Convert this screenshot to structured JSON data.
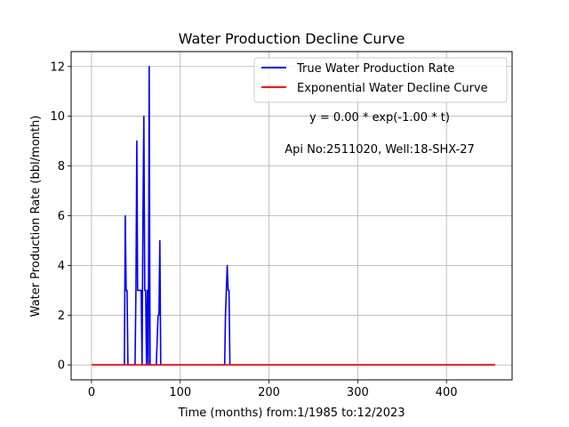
{
  "chart_data": {
    "type": "line",
    "title": "Water Production Decline Curve",
    "xlabel": "Time (months) from:1/1985 to:12/2023",
    "ylabel": "Water Production Rate (bbl/month)",
    "xlim": [
      -23,
      474
    ],
    "ylim": [
      -0.6,
      12.6
    ],
    "xticks": [
      0,
      100,
      200,
      300,
      400
    ],
    "yticks": [
      0,
      2,
      4,
      6,
      8,
      10,
      12
    ],
    "grid": true,
    "legend_position": "top-right",
    "series": [
      {
        "name": "True Water Production Rate",
        "color": "#0000ff",
        "x": [
          0,
          37,
          38,
          39,
          40,
          41,
          49,
          50,
          51,
          52,
          53,
          56,
          57,
          58,
          59,
          60,
          61,
          62,
          63,
          64,
          65,
          66,
          73,
          74,
          75,
          76,
          77,
          78,
          79,
          80,
          150,
          151,
          152,
          153,
          154,
          155,
          156,
          157,
          455
        ],
        "y": [
          0,
          0,
          6,
          3,
          3,
          0,
          0,
          3,
          9,
          3,
          3,
          3,
          0,
          6,
          10,
          3,
          3,
          0,
          3,
          0,
          12,
          0,
          0,
          1,
          2,
          2,
          5,
          0,
          0,
          0,
          0,
          2,
          3,
          4,
          3,
          3,
          0,
          0,
          0
        ]
      },
      {
        "name": "Exponential Water Decline Curve",
        "color": "#ff0000",
        "x": [
          0,
          455
        ],
        "y": [
          0,
          0
        ]
      }
    ],
    "annotations": [
      {
        "text": "y = 0.00 * exp(-1.00 * t)"
      },
      {
        "text": "Api No:2511020, Well:18-SHX-27"
      }
    ]
  }
}
